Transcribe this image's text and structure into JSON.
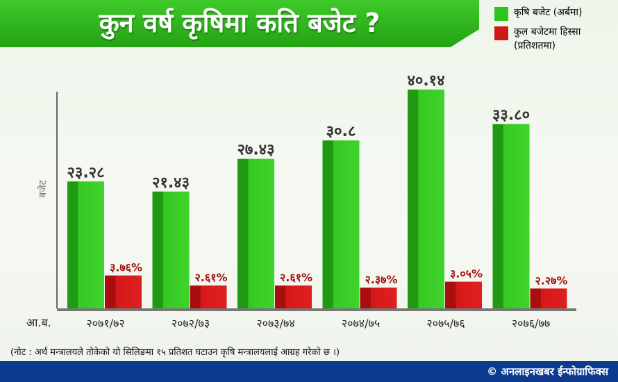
{
  "title": "कुन वर्ष कृषिमा कति बजेट ?",
  "legend": [
    {
      "label": "कृषि बजेट (अर्बमा)",
      "color": "#2ec41b"
    },
    {
      "label": "कुल बजेटमा हिस्सा (प्रतिशतमा)",
      "color": "#d01818"
    }
  ],
  "chart_data": {
    "type": "bar",
    "ylabel": "बजेट",
    "xlabel": "आ.ब.",
    "categories": [
      "२०७१/७२",
      "२०७२/७३",
      "२०७३/७४",
      "२०७४/७५",
      "२०७५/७६",
      "२०७६/७७"
    ],
    "series": [
      {
        "name": "कृषि बजेट (अर्बमा)",
        "values": [
          23.28,
          21.43,
          27.43,
          30.8,
          40.14,
          33.8
        ],
        "labels": [
          "२३.२८",
          "२१.४३",
          "२७.४३",
          "३०.८",
          "४०.१४",
          "३३.८०"
        ],
        "color": "#2ec41b"
      },
      {
        "name": "कुल बजेटमा हिस्सा (प्रतिशतमा)",
        "values": [
          3.76,
          2.61,
          2.61,
          2.37,
          3.05,
          2.27
        ],
        "labels": [
          "३.७६%",
          "२.६१%",
          "२.६१%",
          "२.३७%",
          "३.०५%",
          "२.२७%"
        ],
        "color": "#d01818"
      }
    ]
  },
  "footnote": "(नोट : अर्थ मन्त्रालयले तोकेको यो सिलिङमा १५ प्रतिशत घटाउन कृषि मन्त्रालयलाई आग्रह गरेको छ ।)",
  "credit": "© अनलाइनखबर ईन्फोग्राफिक्स"
}
